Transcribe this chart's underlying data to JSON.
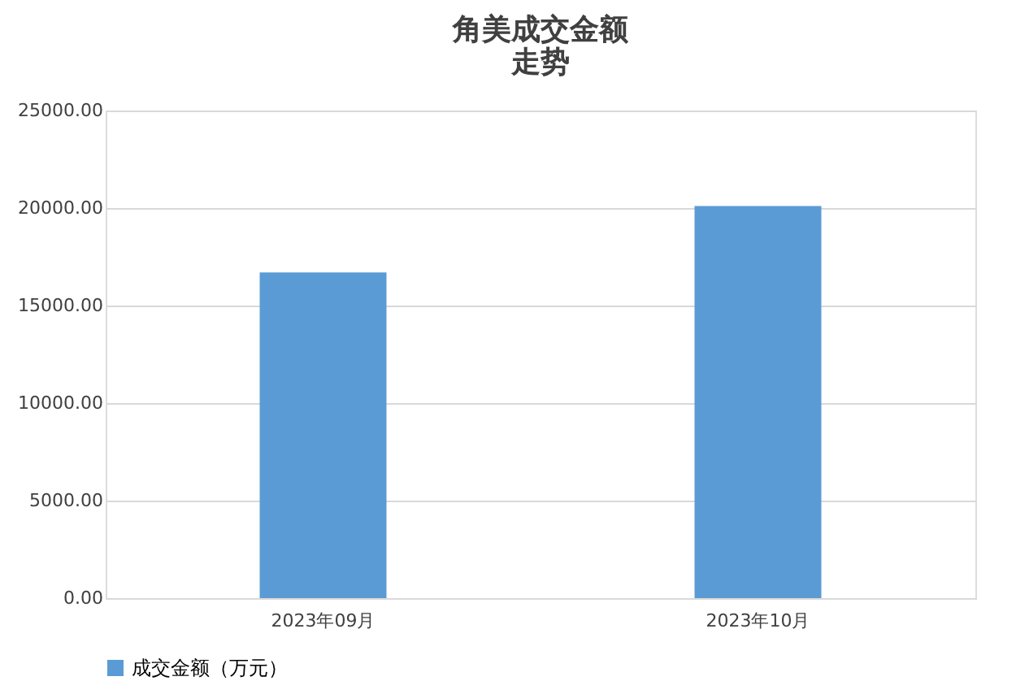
{
  "chart_data": {
    "type": "bar",
    "title": "角美成交金额走势",
    "categories": [
      "2023年09月",
      "2023年10月"
    ],
    "series": [
      {
        "name": "成交金额（万元）",
        "color": "#5b9bd5",
        "values": [
          16700,
          20100
        ]
      }
    ],
    "ylim": [
      0,
      25000
    ],
    "yticks": [
      {
        "value": 0,
        "label": "0.00"
      },
      {
        "value": 5000,
        "label": "5000.00"
      },
      {
        "value": 10000,
        "label": "10000.00"
      },
      {
        "value": 15000,
        "label": "15000.00"
      },
      {
        "value": 20000,
        "label": "20000.00"
      },
      {
        "value": 25000,
        "label": "25000.00"
      }
    ],
    "grid": "y",
    "legend": "bottom"
  }
}
